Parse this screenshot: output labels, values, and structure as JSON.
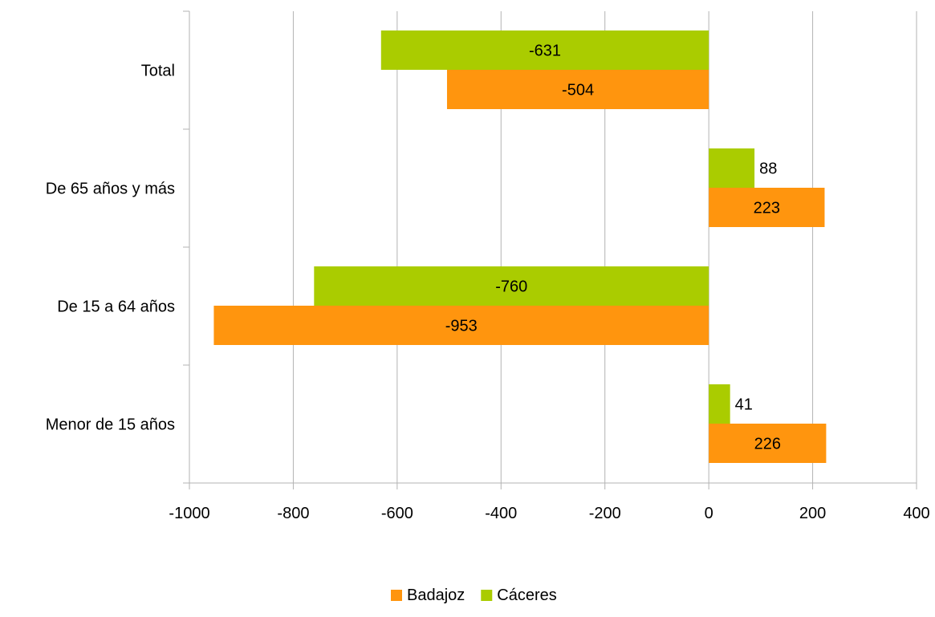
{
  "chart_data": {
    "type": "bar",
    "orientation": "horizontal",
    "categories": [
      "Total",
      "De 65 años y más",
      "De 15 a 64 años",
      "Menor de 15 años"
    ],
    "series": [
      {
        "name": "Cáceres",
        "color": "#aacc00",
        "values": [
          -631,
          88,
          -760,
          41
        ]
      },
      {
        "name": "Badajoz",
        "color": "#ff950e",
        "values": [
          -504,
          223,
          -953,
          226
        ]
      }
    ],
    "xlim": [
      -1000,
      400
    ],
    "xticks": [
      -1000,
      -800,
      -600,
      -400,
      -200,
      0,
      200,
      400
    ],
    "grid": "vertical",
    "legend": "bottom-center",
    "legend_order": [
      "Badajoz",
      "Cáceres"
    ],
    "data_labels": true
  }
}
